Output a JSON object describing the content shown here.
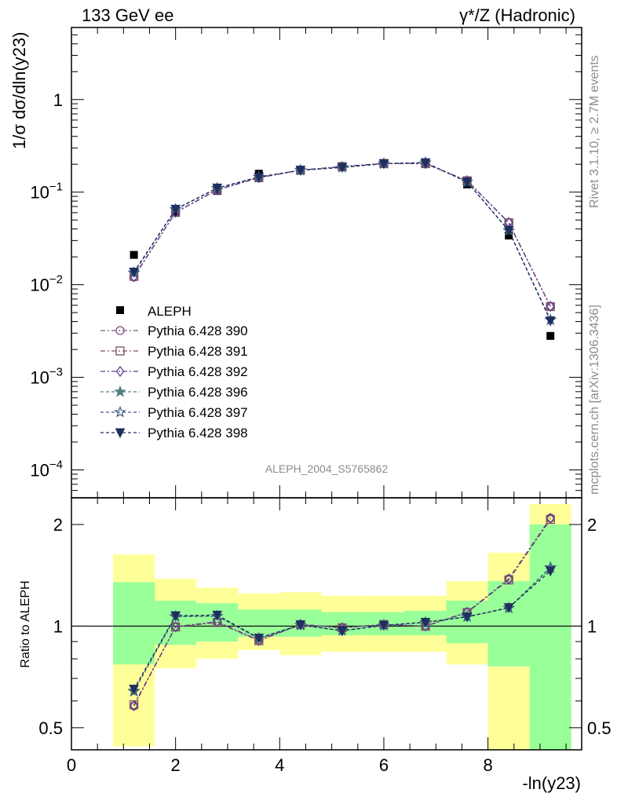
{
  "header": {
    "left": "133 GeV ee",
    "right": "γ*/Z (Hadronic)"
  },
  "side_text": {
    "rivet": "Rivet 3.1.10, ≥ 2.7M events",
    "mcplots": "mcplots.cern.ch [arXiv:1306.3436]"
  },
  "analysis_id": "ALEPH_2004_S5765862",
  "colors": {
    "data": "#000000",
    "band_outer": "#ffff99",
    "band_inner": "#99ff99",
    "p390": "#7f4f7f",
    "p391": "#7f4f5f",
    "p392": "#5f3f8f",
    "p396": "#4f7f7f",
    "p397": "#3f5f7f",
    "p398": "#1f2f5f"
  },
  "chart_data": [
    {
      "type": "scatter",
      "panel": "main",
      "ylabel": "1/σ dσ/dln(y23)",
      "yscale": "log",
      "ylim": [
        5e-05,
        6
      ],
      "xlim": [
        0,
        9.8
      ],
      "y_ticks": [
        {
          "value": 0.0001,
          "base": "10",
          "exp": "−4"
        },
        {
          "value": 0.001,
          "base": "10",
          "exp": "−3"
        },
        {
          "value": 0.01,
          "base": "10",
          "exp": "−2"
        },
        {
          "value": 0.1,
          "base": "10",
          "exp": "−1"
        },
        {
          "value": 1,
          "base": "1",
          "exp": ""
        }
      ],
      "legend_position": "left, middle",
      "x": [
        1.2,
        2.0,
        2.8,
        3.6,
        4.4,
        5.2,
        6.0,
        6.8,
        7.6,
        8.4,
        9.2
      ],
      "bin_edges": [
        0.8,
        1.6,
        2.4,
        3.2,
        4.0,
        4.8,
        5.6,
        6.4,
        7.2,
        8.0,
        8.8,
        9.6
      ],
      "data": {
        "name": "ALEPH",
        "values": [
          0.021,
          0.061,
          0.103,
          0.158,
          0.171,
          0.191,
          0.202,
          0.203,
          0.121,
          0.034,
          0.0028
        ]
      },
      "series": [
        {
          "name": "Pythia 6.428 390",
          "marker": "circle",
          "dash": "6,3,2,3",
          "color_key": "p390",
          "values": [
            0.0121,
            0.0606,
            0.1061,
            0.1438,
            0.1727,
            0.1891,
            0.204,
            0.203,
            0.1331,
            0.0469,
            0.00585
          ]
        },
        {
          "name": "Pythia 6.428 391",
          "marker": "square",
          "dash": "6,3,2,3",
          "color_key": "p391",
          "values": [
            0.0123,
            0.0604,
            0.1055,
            0.1431,
            0.1727,
            0.1887,
            0.2042,
            0.2028,
            0.1327,
            0.0466,
            0.0058
          ]
        },
        {
          "name": "Pythia 6.428 392",
          "marker": "diamond",
          "dash": "6,3,2,3",
          "color_key": "p392",
          "values": [
            0.0122,
            0.0605,
            0.1062,
            0.1433,
            0.1728,
            0.189,
            0.2042,
            0.2032,
            0.133,
            0.047,
            0.00584
          ]
        },
        {
          "name": "Pythia 6.428 396",
          "marker": "star",
          "dash": "4,3",
          "color_key": "p396",
          "values": [
            0.0134,
            0.0652,
            0.1101,
            0.1454,
            0.1721,
            0.1853,
            0.2028,
            0.2082,
            0.1291,
            0.0384,
            0.00416
          ]
        },
        {
          "name": "Pythia 6.428 397",
          "marker": "star-open",
          "dash": "4,3",
          "color_key": "p397",
          "values": [
            0.0135,
            0.065,
            0.1103,
            0.1452,
            0.1723,
            0.1851,
            0.203,
            0.208,
            0.129,
            0.0385,
            0.00418
          ]
        },
        {
          "name": "Pythia 6.428 398",
          "marker": "triangle-down",
          "dash": "4,3",
          "color_key": "p398",
          "values": [
            0.0137,
            0.0655,
            0.111,
            0.1456,
            0.1725,
            0.185,
            0.2031,
            0.2085,
            0.1288,
            0.0386,
            0.00408
          ]
        }
      ]
    },
    {
      "type": "scatter",
      "panel": "ratio",
      "ylabel": "Ratio to ALEPH",
      "xlabel": "-ln(y23)",
      "yscale": "log",
      "ylim": [
        0.43,
        2.4
      ],
      "xlim": [
        0,
        9.8
      ],
      "x_ticks": [
        0,
        2,
        4,
        6,
        8
      ],
      "y_ticks": [
        0.5,
        1,
        2
      ],
      "x": [
        1.2,
        2.0,
        2.8,
        3.6,
        4.4,
        5.2,
        6.0,
        6.8,
        7.6,
        8.4,
        9.2
      ],
      "bands": {
        "inner": [
          [
            0.77,
            1.35
          ],
          [
            0.88,
            1.19
          ],
          [
            0.9,
            1.17
          ],
          [
            0.93,
            1.12
          ],
          [
            0.93,
            1.12
          ],
          [
            0.94,
            1.1
          ],
          [
            0.94,
            1.1
          ],
          [
            0.94,
            1.11
          ],
          [
            0.89,
            1.19
          ],
          [
            0.76,
            1.36
          ],
          [
            0.2,
            2.0
          ]
        ],
        "outer": [
          [
            0.44,
            1.63
          ],
          [
            0.75,
            1.38
          ],
          [
            0.8,
            1.3
          ],
          [
            0.85,
            1.25
          ],
          [
            0.82,
            1.26
          ],
          [
            0.84,
            1.23
          ],
          [
            0.84,
            1.23
          ],
          [
            0.84,
            1.23
          ],
          [
            0.77,
            1.36
          ],
          [
            0.4,
            1.65
          ],
          [
            0.2,
            2.3
          ]
        ]
      },
      "series": [
        {
          "name": "Pythia 6.428 390",
          "values": [
            0.58,
            0.997,
            1.03,
            0.909,
            1.011,
            0.99,
            1.01,
            1.0,
            1.1,
            1.38,
            2.09
          ]
        },
        {
          "name": "Pythia 6.428 391",
          "values": [
            0.585,
            0.994,
            1.025,
            0.905,
            1.01,
            0.988,
            1.011,
            0.999,
            1.097,
            1.37,
            2.07
          ]
        },
        {
          "name": "Pythia 6.428 392",
          "values": [
            0.581,
            0.995,
            1.031,
            0.907,
            1.012,
            0.989,
            1.011,
            1.001,
            1.099,
            1.38,
            2.085
          ]
        },
        {
          "name": "Pythia 6.428 396",
          "values": [
            0.64,
            1.07,
            1.07,
            0.92,
            1.006,
            0.97,
            1.004,
            1.026,
            1.067,
            1.13,
            1.487
          ]
        },
        {
          "name": "Pythia 6.428 397",
          "values": [
            0.643,
            1.066,
            1.071,
            0.919,
            1.007,
            0.969,
            1.005,
            1.025,
            1.066,
            1.132,
            1.493
          ]
        },
        {
          "name": "Pythia 6.428 398",
          "values": [
            0.651,
            1.074,
            1.078,
            0.922,
            1.009,
            0.968,
            1.006,
            1.027,
            1.065,
            1.135,
            1.457
          ]
        }
      ]
    }
  ]
}
